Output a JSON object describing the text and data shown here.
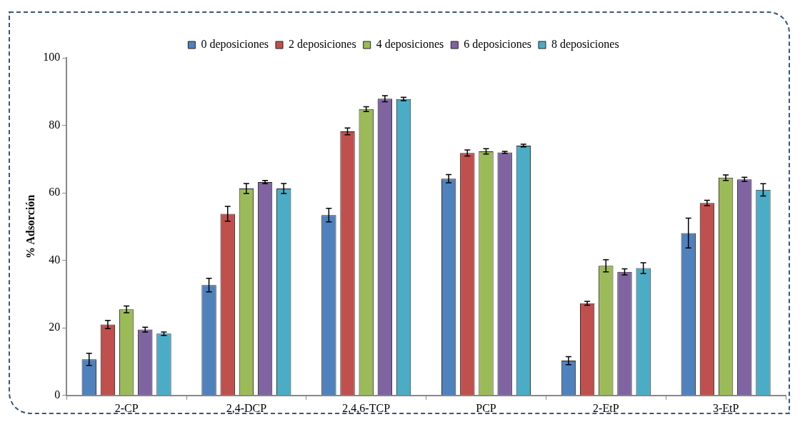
{
  "chart_data": {
    "type": "bar",
    "ylabel": "% Adsorción",
    "categories": [
      "2-CP",
      "2,4-DCP",
      "2,4,6-TCP",
      "PCP",
      "2-EtP",
      "3-EtP"
    ],
    "series": [
      {
        "name": "0 deposiciones",
        "color": "#4f81bd",
        "values": [
          10.7,
          32.7,
          53.4,
          64.2,
          10.3,
          48.1
        ],
        "errors": [
          1.8,
          2,
          2,
          1.2,
          1.2,
          4.4
        ]
      },
      {
        "name": "2 deposiciones",
        "color": "#c0504d",
        "values": [
          21,
          53.8,
          78.2,
          71.8,
          27.3,
          57
        ],
        "errors": [
          1.2,
          2.2,
          1,
          0.9,
          0.6,
          0.8
        ]
      },
      {
        "name": "4 deposiciones",
        "color": "#9bbb59",
        "values": [
          25.5,
          61.3,
          84.8,
          72.3,
          38.4,
          64.5
        ],
        "errors": [
          1,
          1.5,
          0.7,
          0.8,
          1.8,
          0.8
        ]
      },
      {
        "name": "6 deposiciones",
        "color": "#8064a2",
        "values": [
          19.5,
          63.2,
          87.9,
          72,
          36.6,
          64
        ],
        "errors": [
          0.7,
          0.5,
          0.9,
          0.3,
          0.9,
          0.6
        ]
      },
      {
        "name": "8 deposiciones",
        "color": "#4bacc6",
        "values": [
          18.3,
          61.3,
          87.8,
          74,
          37.7,
          60.9
        ],
        "errors": [
          0.5,
          1.5,
          0.5,
          0.4,
          1.6,
          1.8
        ]
      }
    ],
    "ylim": [
      0,
      100
    ],
    "yticks": [
      0,
      20,
      40,
      60,
      80,
      100
    ],
    "grid": false,
    "legend": "top"
  }
}
